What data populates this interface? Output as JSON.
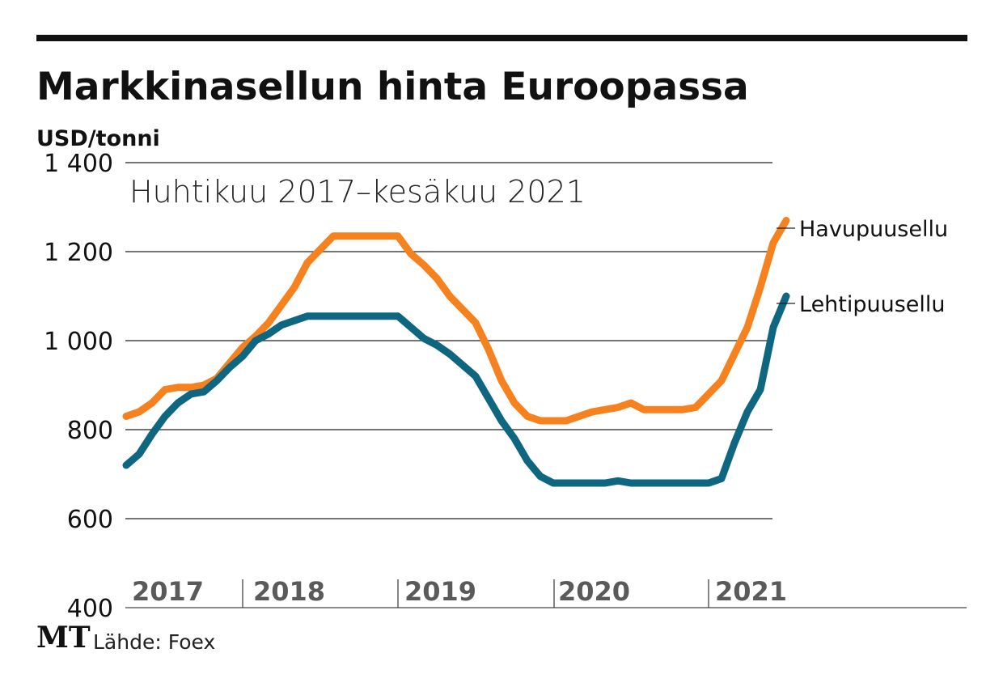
{
  "chart_data": {
    "type": "line",
    "title": "Markkinasellun hinta Euroopassa",
    "ylabel": "USD/tonni",
    "subtitle": "Huhtikuu 2017–kesäkuu 2021",
    "source": "Lähde: Foex",
    "logo": "MT",
    "ylim": [
      400,
      1400
    ],
    "yticks": [
      400,
      600,
      800,
      1000,
      1200,
      1400
    ],
    "ytick_labels": [
      "400",
      "600",
      "800",
      "1 000",
      "1 200",
      "1 400"
    ],
    "year_labels": [
      "2017",
      "2018",
      "2019",
      "2020",
      "2021"
    ],
    "x_start": "2017-04",
    "x_end": "2021-06",
    "grid": true,
    "series": [
      {
        "name": "Havupuusellu",
        "color": "#f5821f",
        "values": [
          830,
          840,
          860,
          890,
          895,
          895,
          900,
          915,
          950,
          985,
          1010,
          1040,
          1080,
          1120,
          1175,
          1205,
          1235,
          1235,
          1235,
          1235,
          1235,
          1235,
          1195,
          1170,
          1140,
          1100,
          1070,
          1040,
          980,
          910,
          860,
          830,
          820,
          820,
          820,
          830,
          840,
          845,
          850,
          860,
          845,
          845,
          845,
          845,
          850,
          880,
          910,
          970,
          1030,
          1120,
          1220,
          1270
        ]
      },
      {
        "name": "Lehtipuusellu",
        "color": "#0f6680",
        "values": [
          720,
          745,
          790,
          830,
          860,
          880,
          885,
          910,
          940,
          965,
          1000,
          1015,
          1035,
          1045,
          1055,
          1055,
          1055,
          1055,
          1055,
          1055,
          1055,
          1055,
          1030,
          1005,
          990,
          970,
          945,
          920,
          870,
          820,
          780,
          730,
          695,
          680,
          680,
          680,
          680,
          680,
          685,
          680,
          680,
          680,
          680,
          680,
          680,
          680,
          690,
          770,
          840,
          890,
          1030,
          1100
        ]
      }
    ]
  }
}
